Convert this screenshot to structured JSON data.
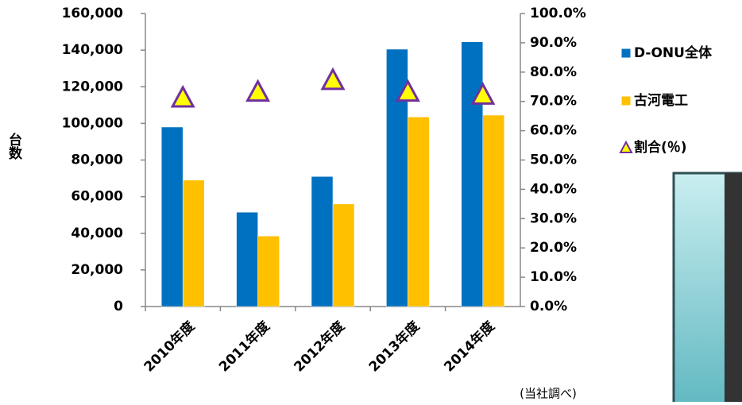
{
  "chart_data": {
    "type": "bar",
    "y_label": "台数",
    "note": "(当社調べ)",
    "categories": [
      "2010年度",
      "2011年度",
      "2012年度",
      "2013年度",
      "2014年度"
    ],
    "series": [
      {
        "name": "D-ONU全体",
        "color": "#0070c0",
        "values": [
          98000,
          51500,
          71000,
          140500,
          144500
        ]
      },
      {
        "name": "古河電工",
        "color": "#ffc000",
        "values": [
          69000,
          38500,
          56000,
          103500,
          104500
        ]
      },
      {
        "name": "割合(％)",
        "color": "#ffff00",
        "edge_color": "#7030a0",
        "type": "marker",
        "axis": "y2",
        "values": [
          71,
          73,
          77,
          73,
          72
        ]
      }
    ],
    "ylim": [
      0,
      160000
    ],
    "yticks": [
      0,
      {
        "value": 20000,
        "label": "20,000"
      },
      {
        "value": 40000,
        "label": "40,000"
      },
      {
        "value": 60000,
        "label": "60,000"
      },
      {
        "value": 80000,
        "label": "80,000"
      },
      {
        "value": 100000,
        "label": "100,000"
      },
      {
        "value": 120000,
        "label": "120,000"
      },
      {
        "value": 140000,
        "label": "140,000"
      },
      {
        "value": 160000,
        "label": "160,000"
      }
    ],
    "y2lim": [
      0,
      100
    ],
    "y2ticks": [
      {
        "value": 0,
        "label": "0.0%"
      },
      {
        "value": 10,
        "label": "10.0%"
      },
      {
        "value": 20,
        "label": "20.0%"
      },
      {
        "value": 30,
        "label": "30.0%"
      },
      {
        "value": 40,
        "label": "40.0%"
      },
      {
        "value": 50,
        "label": "50.0%"
      },
      {
        "value": 60,
        "label": "60.0%"
      },
      {
        "value": 70,
        "label": "70.0%"
      },
      {
        "value": 80,
        "label": "80.0%"
      },
      {
        "value": 90,
        "label": "90.0%"
      },
      {
        "value": 100,
        "label": "100.0%"
      }
    ],
    "legend": "right"
  }
}
